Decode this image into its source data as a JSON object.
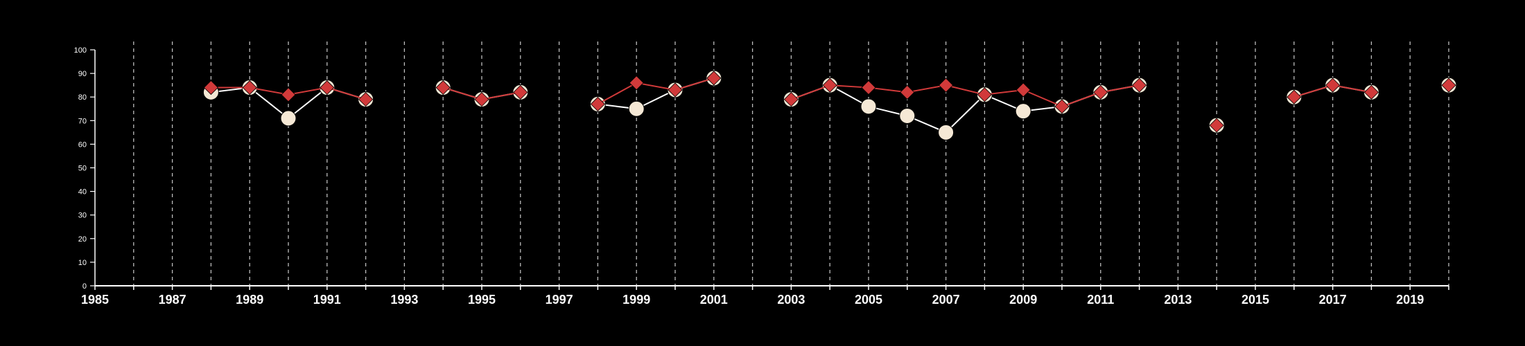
{
  "chart_data": {
    "type": "line",
    "title": "",
    "xlabel": "",
    "ylabel": "",
    "xlim": [
      1985,
      2020
    ],
    "ylim": [
      0,
      100
    ],
    "x_ticks": [
      1985,
      1987,
      1989,
      1991,
      1993,
      1995,
      1997,
      1999,
      2001,
      2003,
      2005,
      2007,
      2009,
      2011,
      2013,
      2015,
      2017,
      2019
    ],
    "y_ticks": [
      0,
      10,
      20,
      30,
      40,
      50,
      60,
      70,
      80,
      90,
      100
    ],
    "vertical_gridlines_years": [
      1986,
      1987,
      1988,
      1989,
      1990,
      1991,
      1992,
      1993,
      1994,
      1995,
      1996,
      1997,
      1998,
      1999,
      2000,
      2001,
      2002,
      2003,
      2004,
      2005,
      2006,
      2007,
      2008,
      2009,
      2010,
      2011,
      2012,
      2013,
      2014,
      2015,
      2016,
      2017,
      2018,
      2019,
      2020
    ],
    "grid": "vertical dashed",
    "background": "#000000",
    "series": [
      {
        "marker": "circle",
        "color": "#f5e8d5",
        "line_color": "#ffffff",
        "points": [
          [
            1988,
            82
          ],
          [
            1989,
            84
          ],
          [
            1990,
            71
          ],
          [
            1991,
            84
          ],
          [
            1992,
            79
          ],
          null,
          [
            1994,
            84
          ],
          [
            1995,
            79
          ],
          [
            1996,
            82
          ],
          null,
          [
            1998,
            77
          ],
          [
            1999,
            75
          ],
          [
            2000,
            83
          ],
          [
            2001,
            88
          ],
          null,
          [
            2003,
            79
          ],
          [
            2004,
            85
          ],
          [
            2005,
            76
          ],
          [
            2006,
            72
          ],
          [
            2007,
            65
          ],
          [
            2008,
            81
          ],
          [
            2009,
            74
          ],
          [
            2010,
            76
          ],
          [
            2011,
            82
          ],
          [
            2012,
            85
          ],
          null,
          [
            2014,
            68
          ],
          null,
          [
            2016,
            80
          ],
          [
            2017,
            85
          ],
          [
            2018,
            82
          ],
          null,
          [
            2020,
            85
          ]
        ]
      },
      {
        "marker": "diamond",
        "color": "#d13a3a",
        "line_color": "#d13a3a",
        "points": [
          [
            1988,
            84
          ],
          [
            1989,
            84
          ],
          [
            1990,
            81
          ],
          [
            1991,
            84
          ],
          [
            1992,
            79
          ],
          null,
          [
            1994,
            84
          ],
          [
            1995,
            79
          ],
          [
            1996,
            82
          ],
          null,
          [
            1998,
            77
          ],
          [
            1999,
            86
          ],
          [
            2000,
            83
          ],
          [
            2001,
            88
          ],
          null,
          [
            2003,
            79
          ],
          [
            2004,
            85
          ],
          [
            2005,
            84
          ],
          [
            2006,
            82
          ],
          [
            2007,
            85
          ],
          [
            2008,
            81
          ],
          [
            2009,
            83
          ],
          [
            2010,
            76
          ],
          [
            2011,
            82
          ],
          [
            2012,
            85
          ],
          null,
          [
            2014,
            68
          ],
          null,
          [
            2016,
            80
          ],
          [
            2017,
            85
          ],
          [
            2018,
            82
          ],
          null,
          [
            2020,
            85
          ]
        ]
      }
    ]
  }
}
